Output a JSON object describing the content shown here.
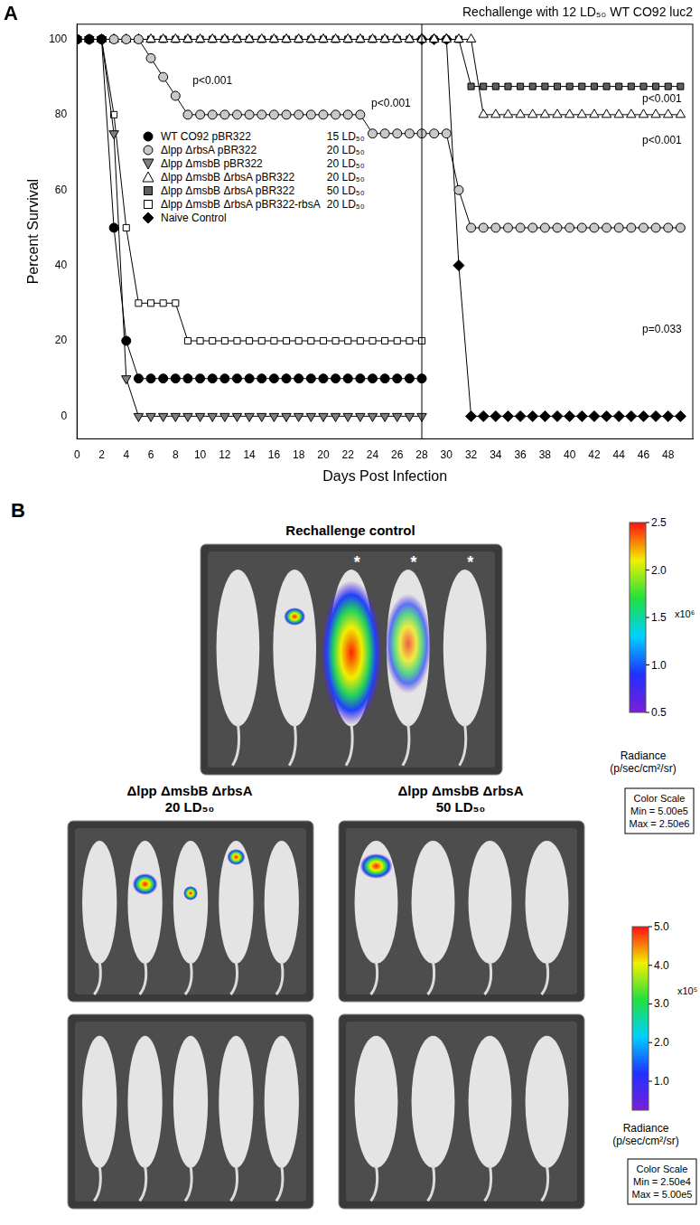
{
  "chart_data": {
    "type": "line",
    "panel_label": "A",
    "title": "Rechallenge with 12 LD₅₀ WT CO92 luc2",
    "x_label": "Days Post Infection",
    "y_label": "Percent Survival",
    "x": [
      0,
      1,
      2,
      3,
      4,
      5,
      6,
      7,
      8,
      9,
      10,
      11,
      12,
      13,
      14,
      15,
      16,
      17,
      18,
      19,
      20,
      21,
      22,
      23,
      24,
      25,
      26,
      27,
      28,
      29,
      30,
      31,
      32,
      33,
      34,
      35,
      36,
      37,
      38,
      39,
      40,
      41,
      42,
      43,
      44,
      45,
      46,
      47,
      48,
      49
    ],
    "xlim": [
      0,
      50
    ],
    "xticks": [
      0,
      2,
      4,
      6,
      8,
      10,
      12,
      14,
      16,
      18,
      20,
      22,
      24,
      26,
      28,
      30,
      32,
      34,
      36,
      38,
      40,
      42,
      44,
      46,
      48
    ],
    "ylim": [
      -6,
      104
    ],
    "yticks": [
      0,
      20,
      40,
      60,
      80,
      100
    ],
    "grid": false,
    "legend": "left",
    "vlines": [
      28
    ],
    "annotations": [
      {
        "text": "p<0.001",
        "x": 11,
        "y": 89
      },
      {
        "text": "p<0.001",
        "x": 25.5,
        "y": 83
      },
      {
        "text": "p<0.001",
        "x": 47.5,
        "y": 84
      },
      {
        "text": "p<0.001",
        "x": 47.5,
        "y": 73
      },
      {
        "text": "p=0.033",
        "x": 47.5,
        "y": 23
      }
    ],
    "series": [
      {
        "name": "WT CO92 pBR322",
        "dose": "15 LD₅₀",
        "color": "#000000",
        "marker": "circle",
        "values": [
          100,
          100,
          100,
          50,
          20,
          10,
          10,
          10,
          10,
          10,
          10,
          10,
          10,
          10,
          10,
          10,
          10,
          10,
          10,
          10,
          10,
          10,
          10,
          10,
          10,
          10,
          10,
          10,
          10,
          null,
          null,
          null,
          null,
          null,
          null,
          null,
          null,
          null,
          null,
          null,
          null,
          null,
          null,
          null,
          null,
          null,
          null,
          null,
          null,
          null
        ]
      },
      {
        "name": "Δlpp ΔrbsA pBR322",
        "dose": "20 LD₅₀",
        "color": "#c8c8c8",
        "marker": "circle",
        "values": [
          100,
          100,
          100,
          100,
          100,
          100,
          95,
          90,
          85,
          80,
          80,
          80,
          80,
          80,
          80,
          80,
          80,
          80,
          80,
          80,
          80,
          80,
          80,
          80,
          75,
          75,
          75,
          75,
          75,
          75,
          75,
          60,
          50,
          50,
          50,
          50,
          50,
          50,
          50,
          50,
          50,
          50,
          50,
          50,
          50,
          50,
          50,
          50,
          50,
          50
        ]
      },
      {
        "name": "Δlpp ΔmsbB pBR322",
        "dose": "20 LD₅₀",
        "color": "#808080",
        "marker": "triangle_down",
        "values": [
          100,
          100,
          100,
          75,
          10,
          0,
          0,
          0,
          0,
          0,
          0,
          0,
          0,
          0,
          0,
          0,
          0,
          0,
          0,
          0,
          0,
          0,
          0,
          0,
          0,
          0,
          0,
          0,
          0,
          null,
          null,
          null,
          null,
          null,
          null,
          null,
          null,
          null,
          null,
          null,
          null,
          null,
          null,
          null,
          null,
          null,
          null,
          null,
          null,
          null
        ]
      },
      {
        "name": "Δlpp ΔmsbB ΔrbsA pBR322",
        "dose": "20 LD₅₀",
        "color": "#ffffff",
        "marker": "triangle",
        "values": [
          100,
          100,
          100,
          100,
          100,
          100,
          100,
          100,
          100,
          100,
          100,
          100,
          100,
          100,
          100,
          100,
          100,
          100,
          100,
          100,
          100,
          100,
          100,
          100,
          100,
          100,
          100,
          100,
          100,
          100,
          100,
          100,
          100,
          80,
          80,
          80,
          80,
          80,
          80,
          80,
          80,
          80,
          80,
          80,
          80,
          80,
          80,
          80,
          80,
          80
        ]
      },
      {
        "name": "Δlpp ΔmsbB ΔrbsA pBR322",
        "dose": "50 LD₅₀",
        "color": "#5f5f5f",
        "marker": "square",
        "values": [
          100,
          100,
          100,
          100,
          100,
          100,
          100,
          100,
          100,
          100,
          100,
          100,
          100,
          100,
          100,
          100,
          100,
          100,
          100,
          100,
          100,
          100,
          100,
          100,
          100,
          100,
          100,
          100,
          100,
          100,
          100,
          100,
          87.5,
          87.5,
          87.5,
          87.5,
          87.5,
          87.5,
          87.5,
          87.5,
          87.5,
          87.5,
          87.5,
          87.5,
          87.5,
          87.5,
          87.5,
          87.5,
          87.5,
          87.5
        ]
      },
      {
        "name": "Δlpp ΔmsbB ΔrbsA pBR322-rbsA",
        "dose": "20 LD₅₀",
        "color": "#ffffff",
        "marker": "square",
        "values": [
          100,
          100,
          100,
          80,
          50,
          30,
          30,
          30,
          30,
          20,
          20,
          20,
          20,
          20,
          20,
          20,
          20,
          20,
          20,
          20,
          20,
          20,
          20,
          20,
          20,
          20,
          20,
          20,
          20,
          null,
          null,
          null,
          null,
          null,
          null,
          null,
          null,
          null,
          null,
          null,
          null,
          null,
          null,
          null,
          null,
          null,
          null,
          null,
          null,
          null
        ]
      },
      {
        "name": "Naive Control",
        "color": "#000000",
        "marker": "diamond",
        "values": [
          null,
          null,
          null,
          null,
          null,
          null,
          null,
          null,
          null,
          null,
          null,
          null,
          null,
          null,
          null,
          null,
          null,
          null,
          null,
          null,
          null,
          null,
          null,
          null,
          null,
          null,
          null,
          null,
          100,
          100,
          100,
          40,
          0,
          0,
          0,
          0,
          0,
          0,
          0,
          0,
          0,
          0,
          0,
          0,
          0,
          0,
          0,
          0,
          0,
          0
        ]
      }
    ]
  },
  "panel_b": {
    "label": "B",
    "images": [
      {
        "title": "Rechallenge control",
        "asterisks": [
          "*",
          "*",
          "*"
        ]
      },
      {
        "title": "Δlpp ΔmsbB ΔrbsA",
        "subtitle": "20 LD₅₀"
      },
      {
        "title": "Δlpp ΔmsbB ΔrbsA",
        "subtitle": "50 LD₅₀"
      }
    ],
    "color_bars": [
      {
        "range": [
          0.5,
          2.5
        ],
        "ticks": [
          2.5,
          {
            "value": 2,
            "label": "2.0"
          },
          1.5,
          {
            "value": 1,
            "label": "1.0"
          },
          0.5
        ],
        "multiplier": "x10⁶",
        "title": "Radiance (p/sec/cm²/sr)",
        "scale_box": [
          "Color Scale",
          "Min = 5.00e5",
          "Max = 2.50e6"
        ]
      },
      {
        "range": [
          0.25,
          5.0
        ],
        "ticks": [
          {
            "value": 5,
            "label": "5.0"
          },
          {
            "value": 4,
            "label": "4.0"
          },
          {
            "value": 3,
            "label": "3.0"
          },
          {
            "value": 2,
            "label": "2.0"
          },
          {
            "value": 1,
            "label": "1.0"
          }
        ],
        "multiplier": "x10⁵",
        "title": "Radiance (p/sec/cm²/sr)",
        "scale_box": [
          "Color Scale",
          "Min = 2.50e4",
          "Max = 5.00e5"
        ]
      }
    ]
  }
}
